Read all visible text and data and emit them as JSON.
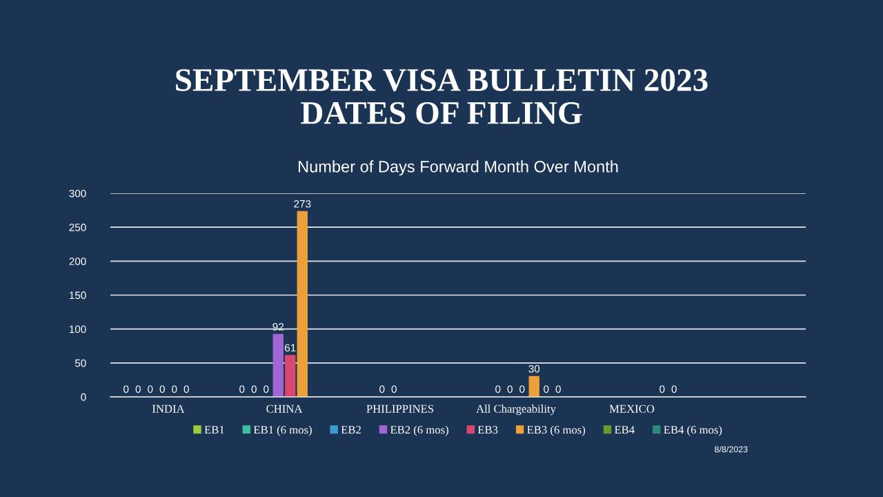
{
  "chart_data": {
    "type": "bar",
    "title": "SEPTEMBER VISA BULLETIN 2023\nDATES OF FILING",
    "subtitle": "Number of Days Forward Month Over Month",
    "categories": [
      "INDIA",
      "CHINA",
      "PHILIPPINES",
      "All Chargeability",
      "MEXICO",
      null
    ],
    "series": [
      {
        "name": "EB1",
        "color": "#9ccc3c",
        "values": [
          0,
          0,
          null,
          null,
          null,
          null
        ]
      },
      {
        "name": "EB1 (6 mos)",
        "color": "#3fbfa0",
        "values": [
          0,
          0,
          null,
          null,
          null,
          null
        ]
      },
      {
        "name": "EB2",
        "color": "#3d9ad1",
        "values": [
          0,
          0,
          0,
          0,
          null,
          null
        ]
      },
      {
        "name": "EB2 (6 mos)",
        "color": "#a066d3",
        "values": [
          0,
          92,
          0,
          0,
          null,
          null
        ]
      },
      {
        "name": "EB3",
        "color": "#d9476e",
        "values": [
          0,
          61,
          null,
          0,
          null,
          null
        ]
      },
      {
        "name": "EB3 (6 mos)",
        "color": "#eba03a",
        "values": [
          0,
          273,
          null,
          30,
          null,
          null
        ]
      },
      {
        "name": "EB4",
        "color": "#6a9a30",
        "values": [
          null,
          null,
          null,
          0,
          0,
          null
        ]
      },
      {
        "name": "EB4 (6 mos)",
        "color": "#2e8a78",
        "values": [
          null,
          null,
          null,
          0,
          0,
          null
        ]
      }
    ],
    "ylim": [
      0,
      300
    ],
    "yticks": [
      0,
      50,
      100,
      150,
      200,
      250,
      300
    ],
    "grid": "y",
    "legend": "bottom",
    "data_labels": true,
    "annotations": [
      "8/8/2023"
    ]
  }
}
